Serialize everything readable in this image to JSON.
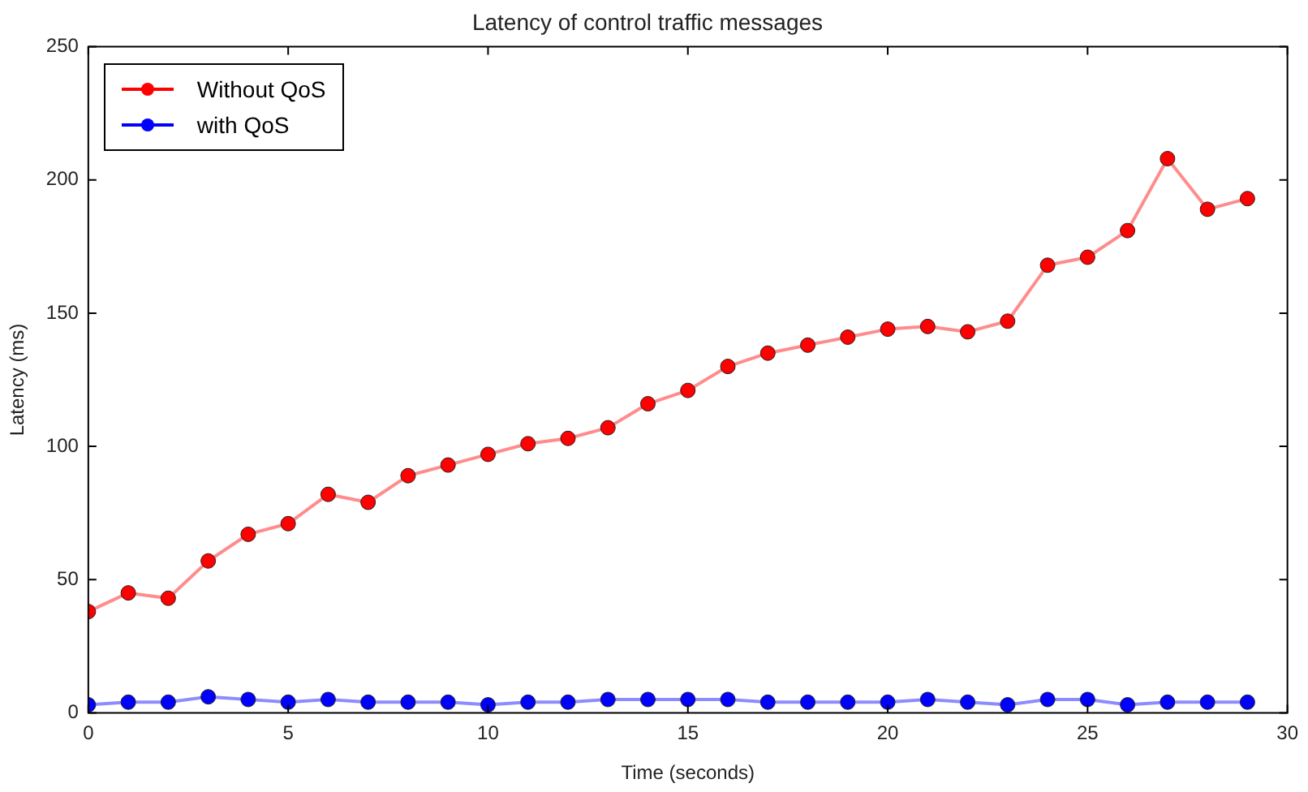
{
  "chart_data": {
    "type": "line",
    "title": "Latency of control traffic messages",
    "xlabel": "Time (seconds)",
    "ylabel": "Latency (ms)",
    "x": [
      0,
      1,
      2,
      3,
      4,
      5,
      6,
      7,
      8,
      9,
      10,
      11,
      12,
      13,
      14,
      15,
      16,
      17,
      18,
      19,
      20,
      21,
      22,
      23,
      24,
      25,
      26,
      27,
      28,
      29
    ],
    "series": [
      {
        "name": "Without QoS",
        "color": "#ff0000",
        "values": [
          38,
          45,
          43,
          57,
          67,
          71,
          82,
          79,
          89,
          93,
          97,
          101,
          103,
          107,
          116,
          121,
          130,
          135,
          138,
          141,
          144,
          145,
          143,
          147,
          168,
          171,
          181,
          208,
          189,
          193
        ]
      },
      {
        "name": "with QoS",
        "color": "#0000ff",
        "values": [
          3,
          4,
          4,
          6,
          5,
          4,
          5,
          4,
          4,
          4,
          3,
          4,
          4,
          5,
          5,
          5,
          5,
          4,
          4,
          4,
          4,
          5,
          4,
          3,
          5,
          5,
          3,
          4,
          4,
          4
        ]
      }
    ],
    "xlim": [
      0,
      30
    ],
    "xticks": [
      0,
      5,
      10,
      15,
      20,
      25,
      30
    ],
    "ylim": [
      0,
      250
    ],
    "yticks": [
      0,
      50,
      100,
      150,
      200,
      250
    ],
    "grid": false,
    "legend": "top left",
    "marker": "circle",
    "line_style": "solid"
  }
}
